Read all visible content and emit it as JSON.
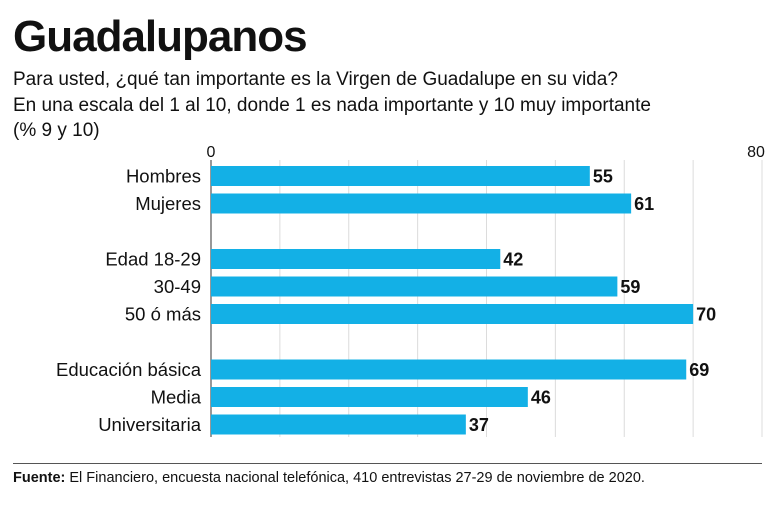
{
  "title": "Guadalupanos",
  "subtitle_lines": [
    "Para usted, ¿qué tan importante es la Virgen de Guadalupe en su vida?",
    "En una escala del 1 al 10, donde 1 es nada importante y 10 muy importante",
    "(% 9 y 10)"
  ],
  "source": {
    "label": "Fuente:",
    "text": " El Financiero, encuesta nacional telefónica, 410 entrevistas 27-29 de noviembre de 2020."
  },
  "colors": {
    "bar": "#13b0e6",
    "grid": "#dcdcdc",
    "text": "#111111"
  },
  "chart_data": {
    "type": "bar",
    "orientation": "horizontal",
    "categories": [
      "Hombres",
      "Mujeres",
      "Edad 18-29",
      "30-49",
      "50 ó más",
      "Educación básica",
      "Media",
      "Universitaria"
    ],
    "groups": [
      [
        "Hombres",
        "Mujeres"
      ],
      [
        "Edad 18-29",
        "30-49",
        "50 ó más"
      ],
      [
        "Educación básica",
        "Media",
        "Universitaria"
      ]
    ],
    "values": [
      55,
      61,
      42,
      59,
      70,
      69,
      46,
      37
    ],
    "xlim": [
      0,
      80
    ],
    "axis_tick_labels": [
      "0",
      "80"
    ],
    "grid": true,
    "legend": "none"
  }
}
